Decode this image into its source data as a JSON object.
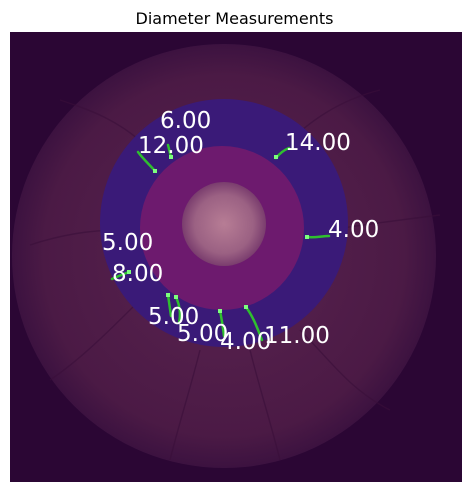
{
  "title": "Diameter Measurements",
  "colors": {
    "background": "#2b0634",
    "outer_disc": "#4b1a45",
    "blue_ring": "#3a1a78",
    "magenta_zone": "#6d1a6e",
    "optic_disc": "#a56a86",
    "vessel_marker": "#33cc33"
  },
  "measurements": [
    {
      "label": "6.00"
    },
    {
      "label": "12.00"
    },
    {
      "label": "14.00"
    },
    {
      "label": "4.00"
    },
    {
      "label": "5.00"
    },
    {
      "label": "8.00"
    },
    {
      "label": "5.00"
    },
    {
      "label": "5.00"
    },
    {
      "label": "4.00"
    },
    {
      "label": "11.00"
    }
  ]
}
